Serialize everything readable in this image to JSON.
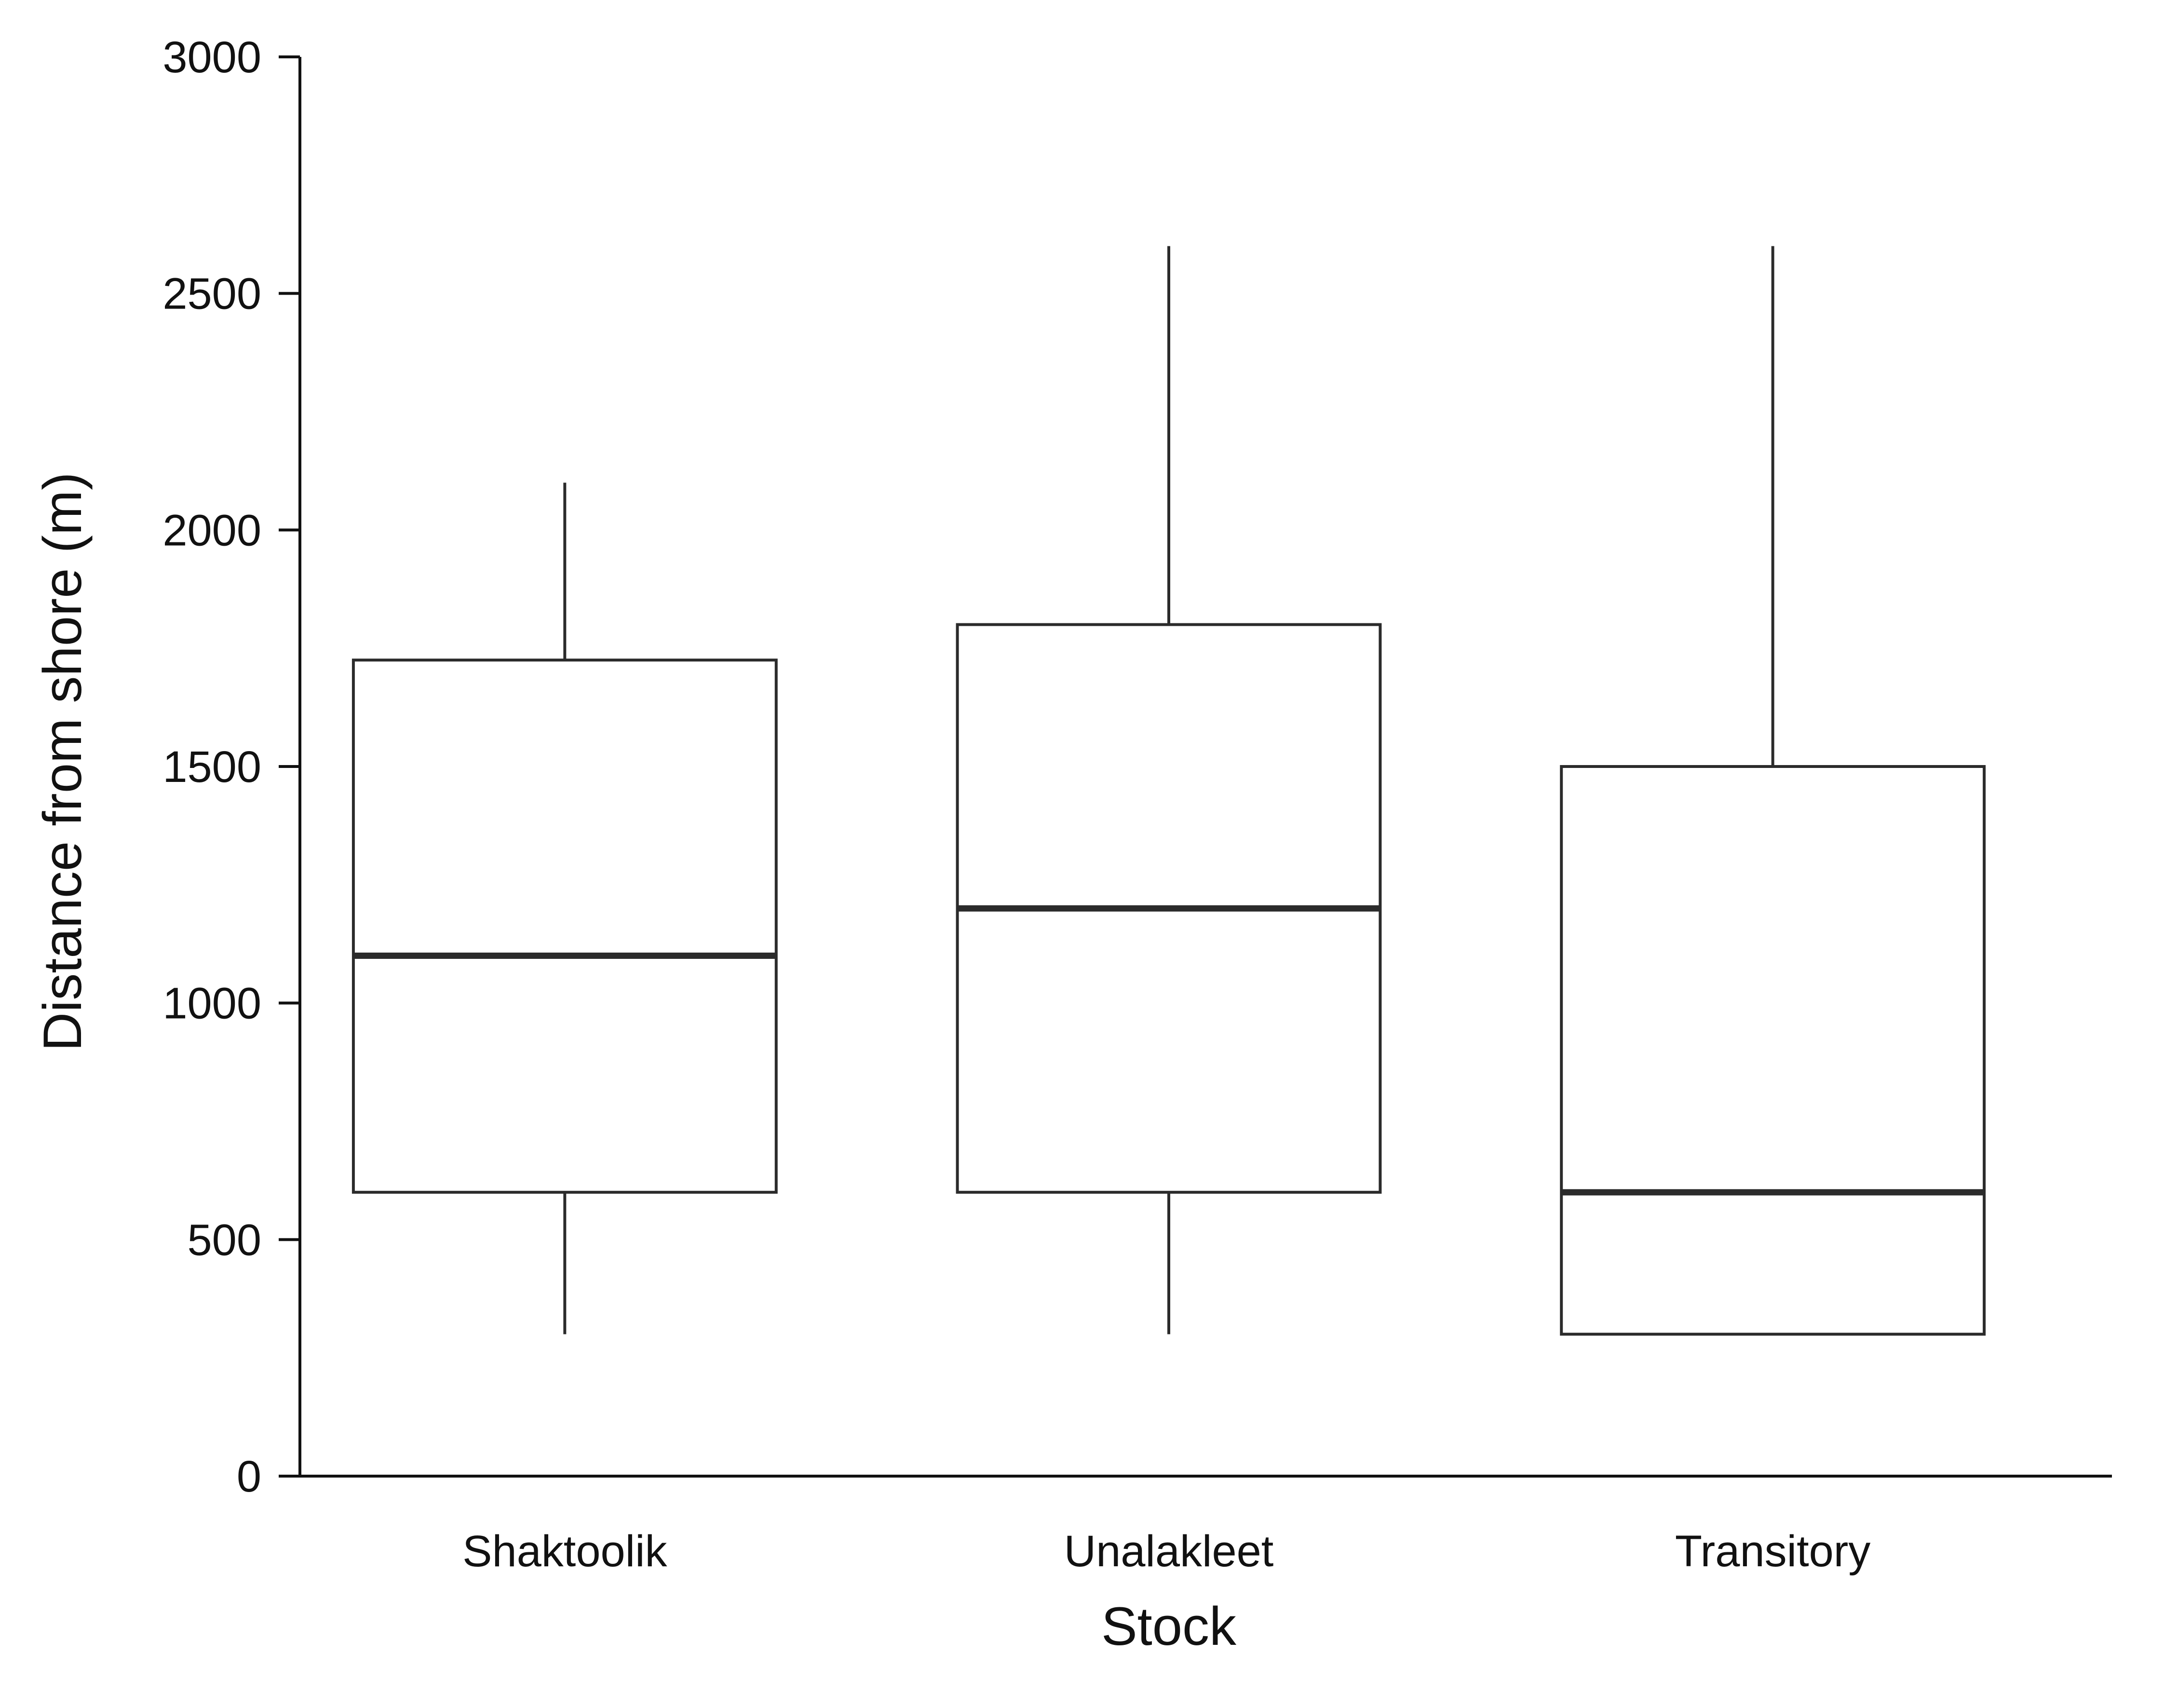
{
  "chart_data": {
    "type": "box",
    "xlabel": "Stock",
    "ylabel": "Distance from shore (m)",
    "ylim": [
      0,
      3000
    ],
    "yticks": [
      0,
      500,
      1000,
      1500,
      2000,
      2500,
      3000
    ],
    "grid": false,
    "categories": [
      "Shaktoolik",
      "Unalakleet",
      "Transitory"
    ],
    "boxes": [
      {
        "category": "Shaktoolik",
        "whisker_low": 300,
        "q1": 600,
        "median": 1100,
        "q3": 1725,
        "whisker_high": 2100
      },
      {
        "category": "Unalakleet",
        "whisker_low": 300,
        "q1": 600,
        "median": 1200,
        "q3": 1800,
        "whisker_high": 2600
      },
      {
        "category": "Transitory",
        "whisker_low": 300,
        "q1": 300,
        "median": 600,
        "q3": 1500,
        "whisker_high": 2600
      }
    ]
  }
}
